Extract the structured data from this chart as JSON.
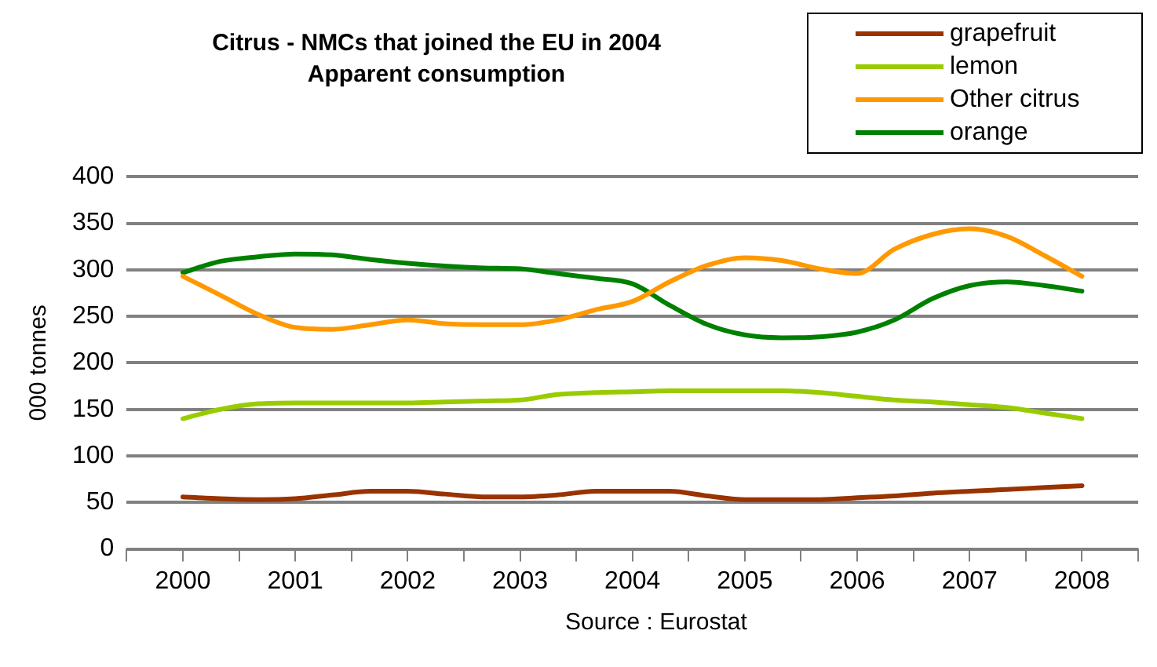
{
  "chart_data": {
    "type": "line",
    "title": "Citrus - NMCs that joined the EU in 2004",
    "subtitle": "Apparent consumption",
    "ylabel": "000 tonnes",
    "annotations": [
      "Source : Eurostat"
    ],
    "x": [
      2000,
      2000.33,
      2000.67,
      2001,
      2001.33,
      2001.67,
      2002,
      2002.33,
      2002.67,
      2003,
      2003.33,
      2003.67,
      2004,
      2004.33,
      2004.67,
      2005,
      2005.33,
      2005.67,
      2006,
      2006.33,
      2006.67,
      2007,
      2007.33,
      2007.67,
      2008
    ],
    "series": [
      {
        "name": "grapefruit",
        "color": "#993300",
        "values": [
          56,
          54,
          53,
          54,
          58,
          62,
          62,
          59,
          56,
          56,
          58,
          62,
          62,
          62,
          57,
          53,
          53,
          53,
          55,
          57,
          60,
          62,
          64,
          66,
          68
        ]
      },
      {
        "name": "lemon",
        "color": "#99cc00",
        "values": [
          140,
          150,
          156,
          157,
          157,
          157,
          157,
          158,
          159,
          160,
          166,
          168,
          169,
          170,
          170,
          170,
          170,
          168,
          164,
          160,
          158,
          155,
          152,
          146,
          140
        ]
      },
      {
        "name": "Other citrus",
        "color": "#ff9900",
        "values": [
          293,
          273,
          252,
          238,
          236,
          241,
          246,
          242,
          241,
          241,
          246,
          257,
          266,
          287,
          305,
          313,
          310,
          301,
          296,
          322,
          338,
          344,
          336,
          315,
          293
        ]
      },
      {
        "name": "orange",
        "color": "#008000",
        "values": [
          297,
          309,
          314,
          317,
          316,
          311,
          307,
          304,
          302,
          301,
          296,
          291,
          285,
          262,
          241,
          230,
          227,
          228,
          233,
          246,
          269,
          283,
          287,
          283,
          277
        ]
      }
    ],
    "xlim": [
      1999.5,
      2008.5
    ],
    "xticks": [
      {
        "value": 1999.5,
        "label": null
      },
      2000,
      {
        "value": 2000.5,
        "label": null
      },
      2001,
      {
        "value": 2001.5,
        "label": null
      },
      2002,
      {
        "value": 2002.5,
        "label": null
      },
      2003,
      {
        "value": 2003.5,
        "label": null
      },
      2004,
      {
        "value": 2004.5,
        "label": null
      },
      2005,
      {
        "value": 2005.5,
        "label": null
      },
      2006,
      {
        "value": 2006.5,
        "label": null
      },
      2007,
      {
        "value": 2007.5,
        "label": null
      },
      2008,
      {
        "value": 2008.5,
        "label": null
      }
    ],
    "ylim": [
      0,
      400
    ],
    "yticks": [
      0,
      50,
      100,
      150,
      200,
      250,
      300,
      350,
      400
    ],
    "grid": "y",
    "legend": "top right",
    "marker": "none",
    "line_style": "solid"
  }
}
